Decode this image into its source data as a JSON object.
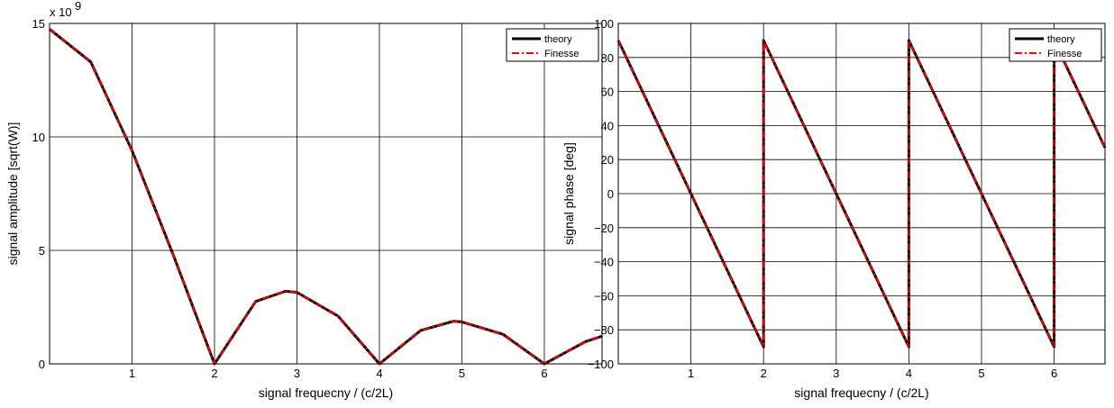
{
  "chart_data": [
    {
      "type": "line",
      "xlabel": "signal frequecny / (c/2L)",
      "ylabel": "signal amplitude [sqrt(W)]",
      "exponent_label_base": "x 10",
      "exponent_label_power": "9",
      "xlim": [
        0,
        6.7
      ],
      "ylim": [
        0,
        15
      ],
      "xticks": [
        1,
        2,
        3,
        4,
        5,
        6
      ],
      "xtick_labels": [
        "1",
        "2",
        "3",
        "4",
        "5",
        "6"
      ],
      "yticks": [
        0,
        5,
        10,
        15
      ],
      "ytick_labels": [
        "0",
        "5",
        "10",
        "15"
      ],
      "grid": true,
      "legend_position": "top-right",
      "series": [
        {
          "name": "theory",
          "color": "#000000",
          "style": "solid"
        },
        {
          "name": "Finesse",
          "color": "#ff0000",
          "style": "dashdot"
        }
      ],
      "x": [
        0,
        0.5,
        1,
        1.5,
        2,
        2.5,
        2.86,
        3,
        3.5,
        4,
        4.5,
        4.9,
        5,
        5.5,
        6,
        6.5,
        6.7
      ],
      "y": [
        14.75,
        13.3,
        9.4,
        4.8,
        0,
        2.75,
        3.2,
        3.15,
        2.1,
        0,
        1.47,
        1.88,
        1.85,
        1.3,
        0,
        0.98,
        1.22
      ]
    },
    {
      "type": "line",
      "xlabel": "signal frequecny / (c/2L)",
      "ylabel": "signal phase [deg]",
      "xlim": [
        0,
        6.7
      ],
      "ylim": [
        -100,
        100
      ],
      "xticks": [
        1,
        2,
        3,
        4,
        5,
        6
      ],
      "xtick_labels": [
        "1",
        "2",
        "3",
        "4",
        "5",
        "6"
      ],
      "yticks": [
        -100,
        -80,
        -60,
        -40,
        -20,
        0,
        20,
        40,
        60,
        80,
        100
      ],
      "ytick_labels": [
        "−100",
        "−80",
        "−60",
        "−40",
        "−20",
        "0",
        "20",
        "40",
        "60",
        "80",
        "100"
      ],
      "grid": true,
      "legend_position": "top-right",
      "series": [
        {
          "name": "theory",
          "color": "#000000",
          "style": "solid"
        },
        {
          "name": "Finesse",
          "color": "#ff0000",
          "style": "dashdot"
        }
      ],
      "x": [
        0,
        1,
        2,
        2,
        3,
        4,
        4,
        5,
        6,
        6,
        6.7
      ],
      "y": [
        90,
        0,
        -90,
        90,
        0,
        -90,
        90,
        0,
        -90,
        90,
        27
      ]
    }
  ]
}
